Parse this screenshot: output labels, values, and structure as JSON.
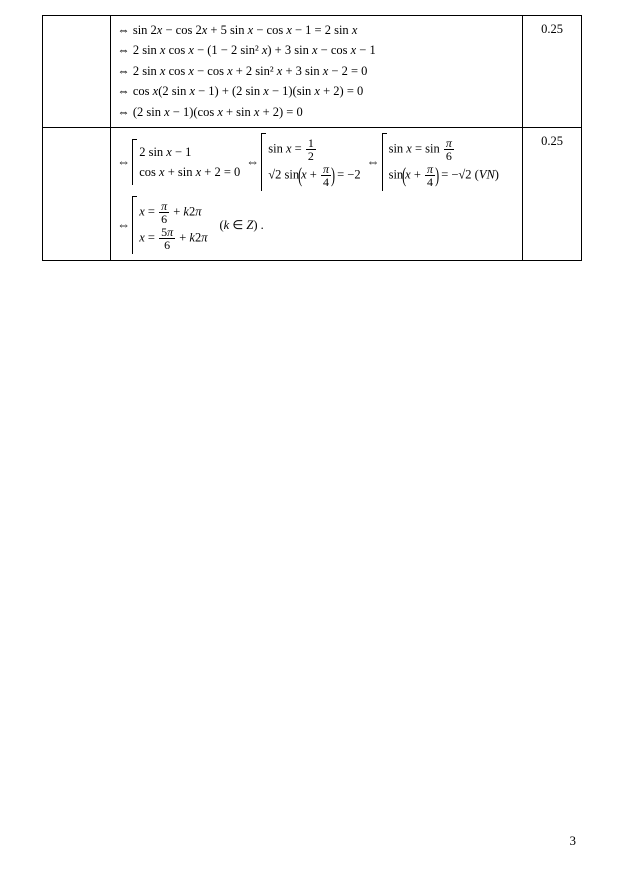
{
  "row1": {
    "lines": [
      "⇔ sin 2<i>x</i> − cos 2<i>x</i> + 5 sin <i>x</i> − cos <i>x</i> − 1 = 2 sin <i>x</i>",
      "⇔ 2 sin <i>x</i> cos <i>x</i> − (1 − 2 sin² <i>x</i>) + 3 sin <i>x</i> − cos <i>x</i> − 1",
      "⇔ 2 sin <i>x</i> cos <i>x</i> − cos <i>x</i> + 2 sin² <i>x</i> + 3 sin <i>x</i> − 2 = 0",
      "⇔ cos <i>x</i>(2 sin <i>x</i> − 1) + (2 sin <i>x</i> − 1)(sin <i>x</i> + 2) = 0",
      "⇔ (2 sin <i>x</i> − 1)(cos <i>x</i> + sin <i>x</i> + 2) = 0"
    ],
    "score": "0.25"
  },
  "row2": {
    "block1": {
      "top": "2 sin <i>x</i> − 1",
      "bot": "cos <i>x</i> + sin <i>x</i> + 2 = 0"
    },
    "block2_top_lhs": "sin <i>x</i> = ",
    "block2_top_frac": {
      "n": "1",
      "d": "2"
    },
    "block2_bot_pre": "√2 sin",
    "block2_bot_inside_pre": "<i>x</i> + ",
    "block2_bot_inside_frac": {
      "n": "<i>π</i>",
      "d": "4"
    },
    "block2_bot_post": " = −2",
    "block3_top_lhs": "sin <i>x</i> = sin ",
    "block3_top_frac": {
      "n": "<i>π</i>",
      "d": "6"
    },
    "block3_bot_pre": "sin",
    "block3_bot_inside_pre": "<i>x</i> + ",
    "block3_bot_inside_frac": {
      "n": "<i>π</i>",
      "d": "4"
    },
    "block3_bot_post": " = −√2  (<i>VN</i>)",
    "final_top_pre": "<i>x</i> = ",
    "final_top_frac": {
      "n": "<i>π</i>",
      "d": "6"
    },
    "final_top_post": " + <i>k</i>2<i>π</i>",
    "final_bot_pre": "<i>x</i> = ",
    "final_bot_frac": {
      "n": "5<i>π</i>",
      "d": "6"
    },
    "final_bot_post": " + <i>k</i>2<i>π</i>",
    "final_k": "(<i>k</i> ∈ <i>Z</i>) .",
    "score": "0.25"
  },
  "page_number": "3"
}
